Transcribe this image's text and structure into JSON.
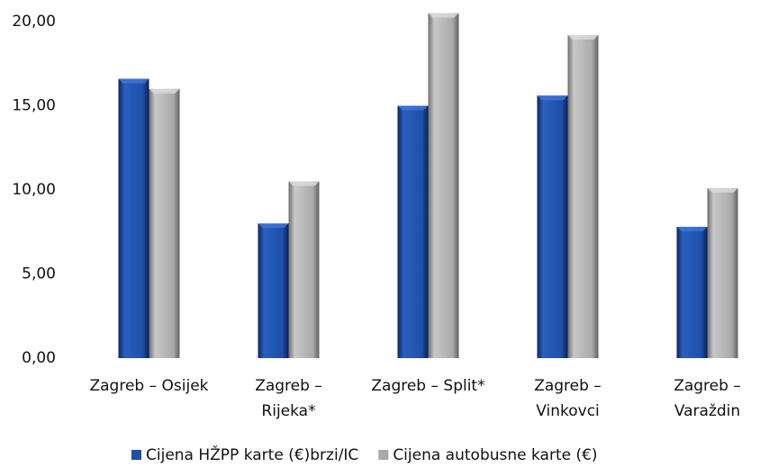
{
  "chart_data": {
    "type": "bar",
    "categories": [
      [
        "Zagreb – Osijek"
      ],
      [
        "Zagreb –",
        "Rijeka*"
      ],
      [
        "Zagreb – Split*"
      ],
      [
        "Zagreb –",
        "Vinkovci"
      ],
      [
        "Zagreb –",
        "Varaždin"
      ]
    ],
    "series": [
      {
        "name": "Cijena HŽPP karte (€)brzi/IC",
        "color": "#1f4fa8",
        "values": [
          16.6,
          8.0,
          15.0,
          15.6,
          7.8
        ]
      },
      {
        "name": "Cijena autobusne karte (€)",
        "color": "#a9a9a9",
        "values": [
          16.0,
          10.5,
          20.5,
          19.2,
          10.1
        ]
      }
    ],
    "ylim": [
      0,
      21
    ],
    "yticks": [
      {
        "value": 0,
        "label": "0,00"
      },
      {
        "value": 5,
        "label": "5,00"
      },
      {
        "value": 10,
        "label": "10,00"
      },
      {
        "value": 15,
        "label": "15,00"
      },
      {
        "value": 20,
        "label": "20,00"
      }
    ],
    "grid": false,
    "legend": "bottom"
  }
}
